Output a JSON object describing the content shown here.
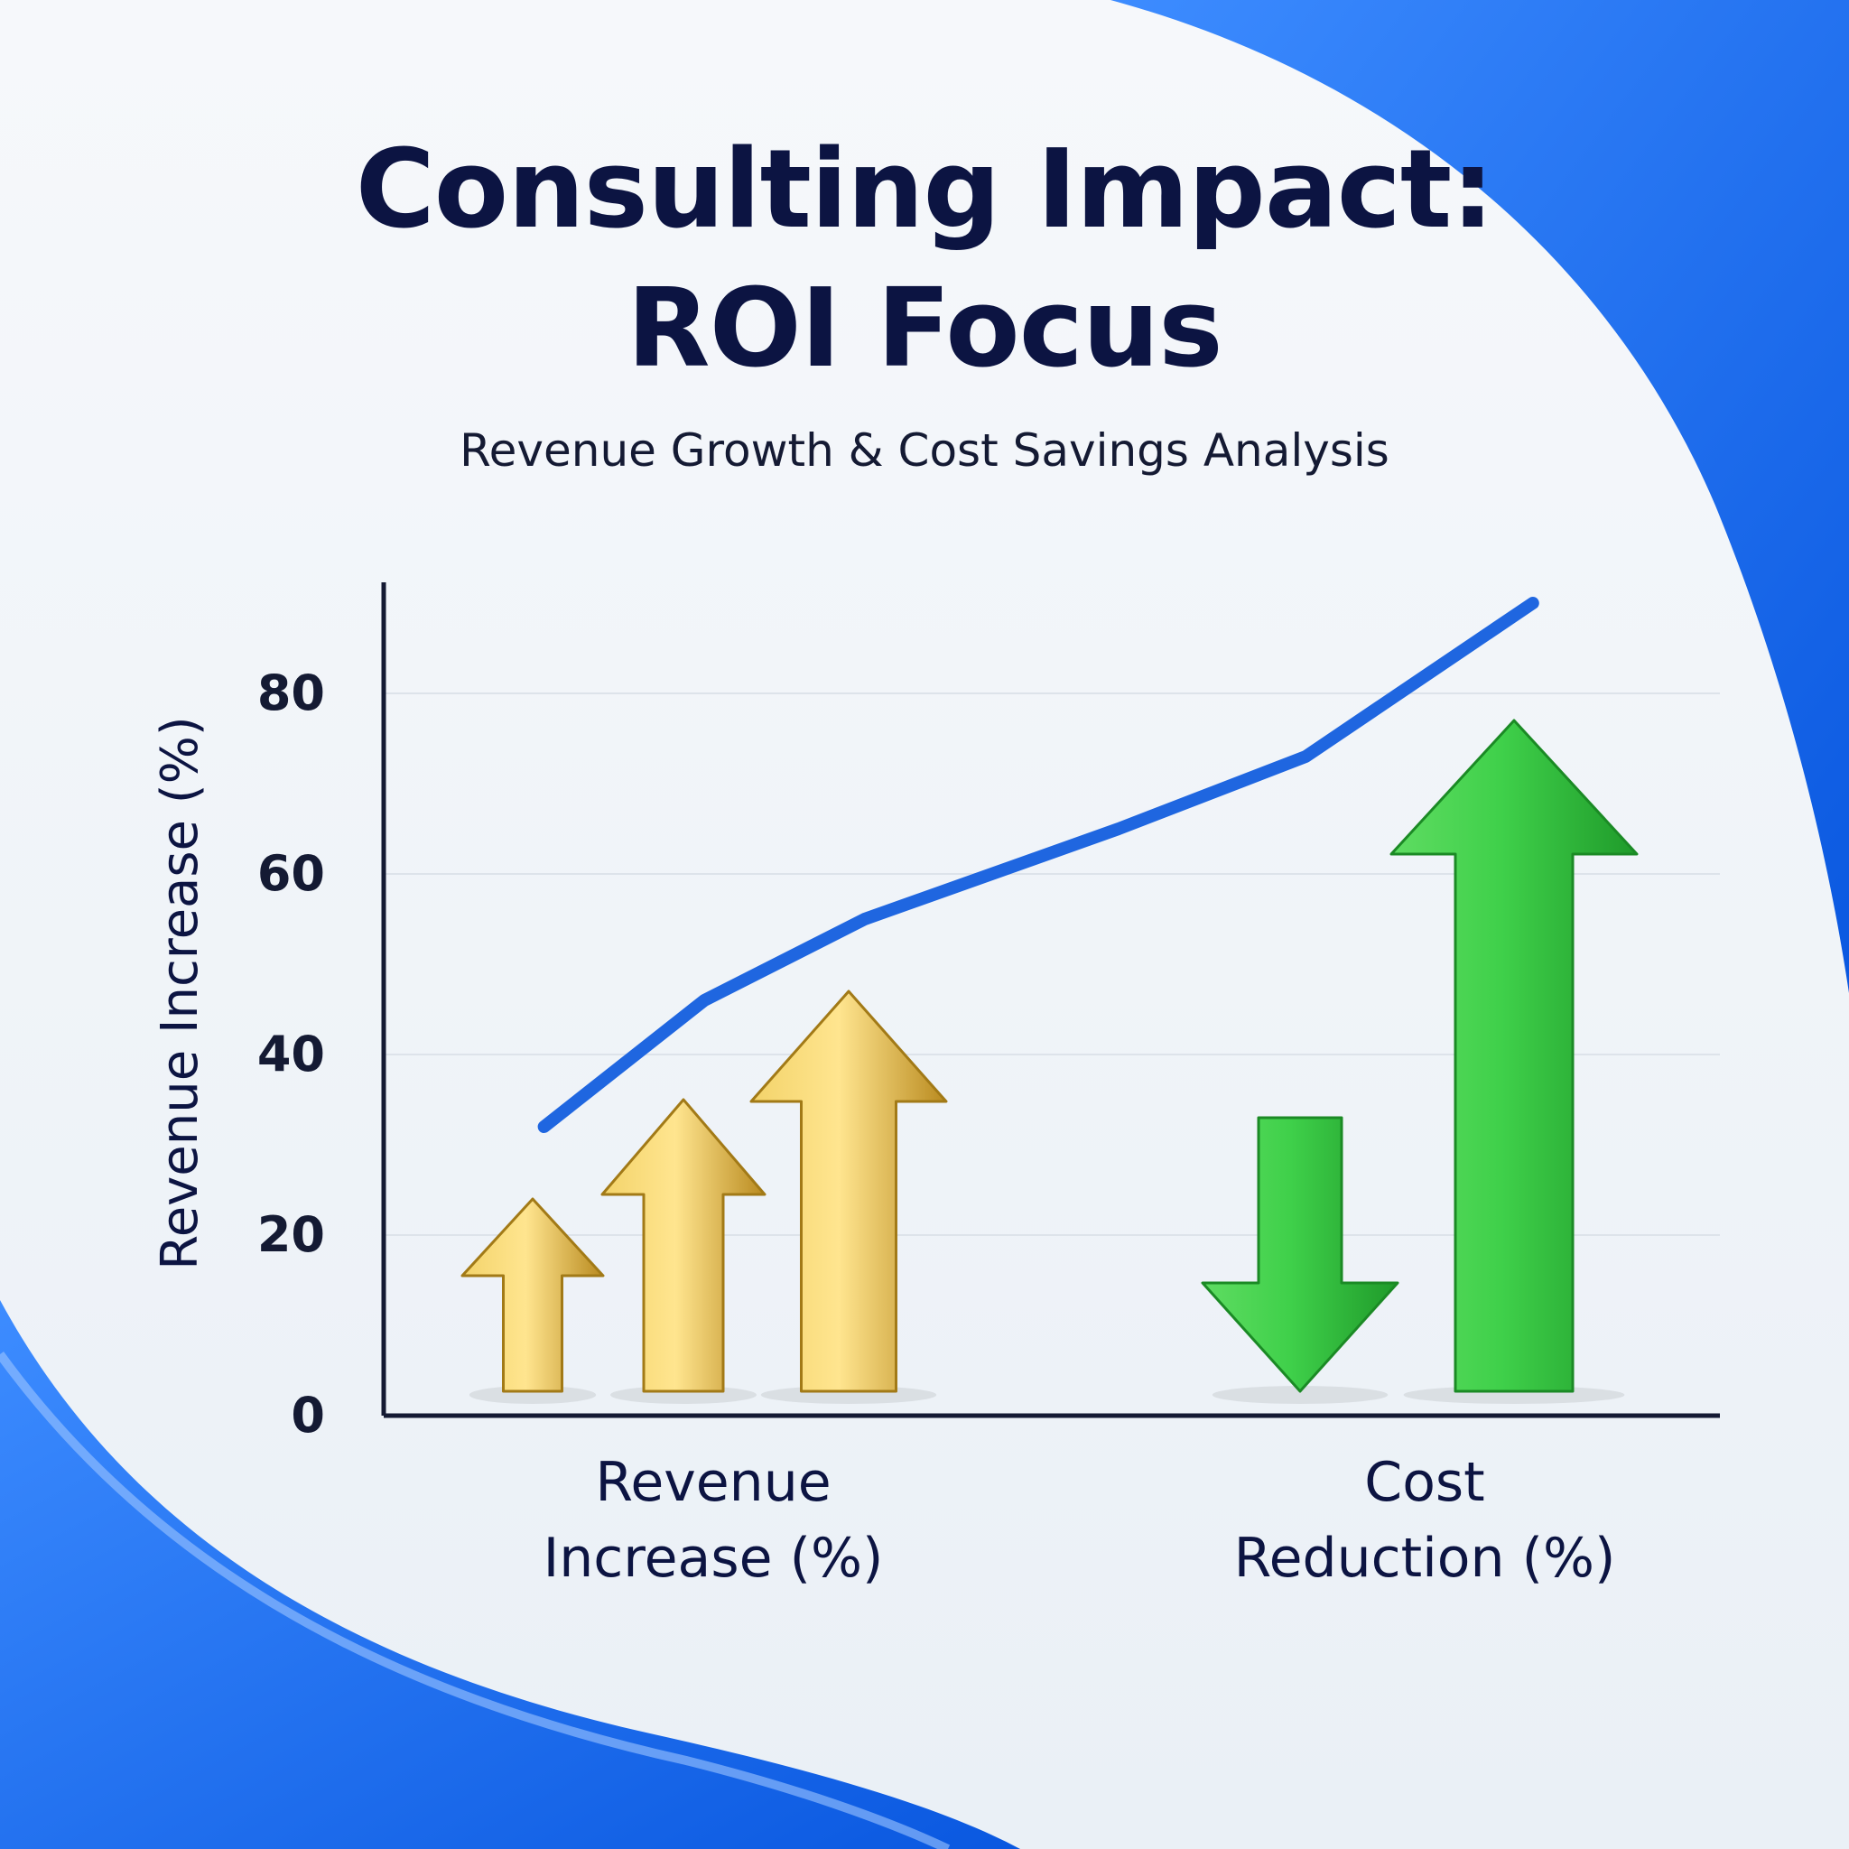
{
  "title_lines": [
    "Consulting Impact:",
    "ROI Focus"
  ],
  "subtitle": "Revenue Growth & Cost Savings Analysis",
  "colors": {
    "title": "#0c1442",
    "axis": "#141a33",
    "line": "#1f66e0",
    "gold": "#e0b43c",
    "green": "#2fbe3a",
    "accent_blue": "#1a6cf0"
  },
  "chart_data": {
    "type": "bar",
    "ylabel": "Revenue Increase (%)",
    "yticks": [
      0,
      20,
      40,
      60,
      80
    ],
    "ylim": [
      0,
      92
    ],
    "grid": true,
    "groups": [
      {
        "label_lines": [
          "Revenue",
          "Increase (%)"
        ]
      },
      {
        "label_lines": [
          "Cost",
          "Reduction (%)"
        ]
      }
    ],
    "bars": [
      {
        "group": 0,
        "value": 24,
        "direction": "up",
        "color": "gold"
      },
      {
        "group": 0,
        "value": 35,
        "direction": "up",
        "color": "gold"
      },
      {
        "group": 0,
        "value": 47,
        "direction": "up",
        "color": "gold"
      },
      {
        "group": 1,
        "value": 33,
        "direction": "down",
        "color": "green"
      },
      {
        "group": 1,
        "value": 77,
        "direction": "up",
        "color": "green"
      }
    ],
    "trend_line": {
      "values": [
        32,
        46,
        55,
        65,
        73,
        90
      ],
      "positions": [
        0.12,
        0.24,
        0.36,
        0.55,
        0.69,
        0.86
      ]
    }
  }
}
